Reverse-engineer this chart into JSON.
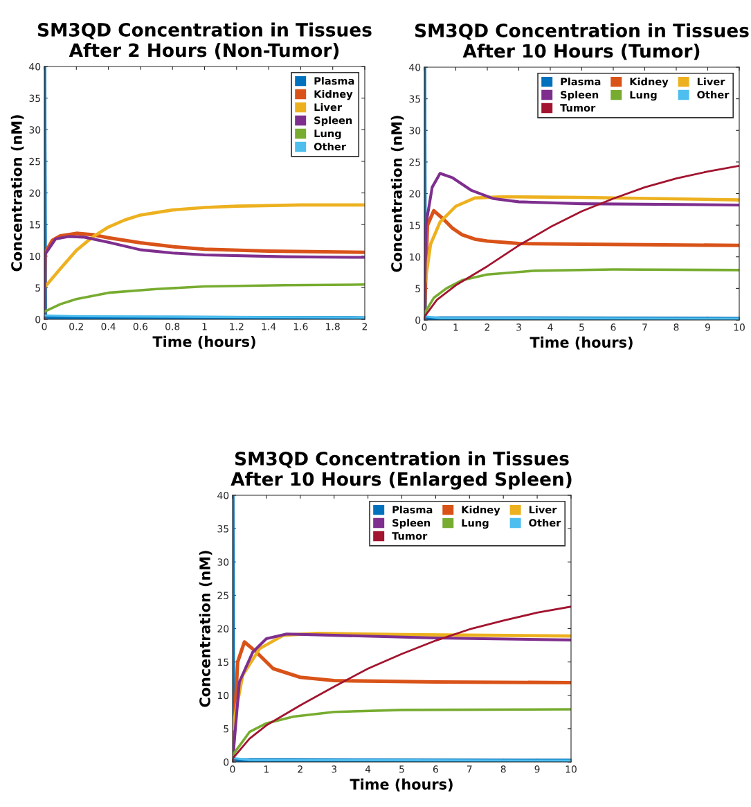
{
  "chart_data": [
    {
      "type": "line",
      "title": "SM3QD Concentration in Tissues\nAfter 2 Hours (Non-Tumor)",
      "xlabel": "Time (hours)",
      "ylabel": "Concentration (nM)",
      "xlim": [
        0,
        2
      ],
      "ylim": [
        0,
        40
      ],
      "xticks": [
        0,
        0.2,
        0.4,
        0.6,
        0.8,
        1,
        1.2,
        1.4,
        1.6,
        1.8,
        2
      ],
      "yticks": [
        0,
        5,
        10,
        15,
        20,
        25,
        30,
        35,
        40
      ],
      "legend": "top right",
      "grid": false,
      "line_style": "solid",
      "marker": "none",
      "series": [
        {
          "name": "Plasma",
          "color": "#0072bd",
          "x": [
            0,
            0.005,
            0.02,
            2
          ],
          "values": [
            40,
            0.5,
            0.3,
            0.2
          ]
        },
        {
          "name": "Kidney",
          "color": "#d95319",
          "x": [
            0,
            0.005,
            0.05,
            0.1,
            0.2,
            0.3,
            0.4,
            0.6,
            0.8,
            1.0,
            1.4,
            2
          ],
          "values": [
            0,
            10.5,
            12.5,
            13.2,
            13.6,
            13.4,
            12.9,
            12.1,
            11.5,
            11.1,
            10.8,
            10.6
          ]
        },
        {
          "name": "Liver",
          "color": "#edb120",
          "x": [
            0,
            0.1,
            0.2,
            0.3,
            0.4,
            0.5,
            0.6,
            0.8,
            1.0,
            1.2,
            1.6,
            2
          ],
          "values": [
            5,
            8,
            10.9,
            13,
            14.6,
            15.7,
            16.5,
            17.3,
            17.7,
            17.9,
            18.1,
            18.1
          ]
        },
        {
          "name": "Spleen",
          "color": "#7e2f8e",
          "x": [
            0,
            0.005,
            0.07,
            0.15,
            0.25,
            0.4,
            0.6,
            0.8,
            1.0,
            1.5,
            2
          ],
          "values": [
            0,
            10.3,
            12.7,
            13.1,
            13.0,
            12.2,
            11.0,
            10.5,
            10.2,
            9.9,
            9.8
          ]
        },
        {
          "name": "Lung",
          "color": "#77ac30",
          "x": [
            0,
            0.1,
            0.2,
            0.4,
            0.7,
            1.0,
            1.5,
            2
          ],
          "values": [
            1.2,
            2.4,
            3.2,
            4.2,
            4.8,
            5.2,
            5.4,
            5.5
          ]
        },
        {
          "name": "Other",
          "color": "#4dbeee",
          "x": [
            0,
            0.2,
            1,
            2
          ],
          "values": [
            0.6,
            0.5,
            0.4,
            0.3
          ]
        }
      ]
    },
    {
      "type": "line",
      "title": "SM3QD Concentration in Tissues\nAfter 10 Hours (Tumor)",
      "xlabel": "Time (hours)",
      "ylabel": "Concentration (nM)",
      "xlim": [
        0,
        10
      ],
      "ylim": [
        0,
        40
      ],
      "xticks": [
        0,
        1,
        2,
        3,
        4,
        5,
        6,
        7,
        8,
        9,
        10
      ],
      "yticks": [
        0,
        5,
        10,
        15,
        20,
        25,
        30,
        35,
        40
      ],
      "legend": "top right",
      "grid": false,
      "line_style": "solid",
      "marker": "none",
      "series": [
        {
          "name": "Plasma",
          "color": "#0072bd",
          "x": [
            0,
            0.02,
            0.1,
            10
          ],
          "values": [
            40,
            0.5,
            0.3,
            0.2
          ]
        },
        {
          "name": "Kidney",
          "color": "#d95319",
          "x": [
            0,
            0.1,
            0.3,
            0.6,
            0.9,
            1.2,
            1.6,
            2,
            3,
            5,
            10
          ],
          "values": [
            0,
            15,
            17.3,
            16,
            14.5,
            13.5,
            12.8,
            12.5,
            12.1,
            12,
            11.8
          ]
        },
        {
          "name": "Liver",
          "color": "#edb120",
          "x": [
            0,
            0.2,
            0.5,
            1,
            1.6,
            2.5,
            5,
            10
          ],
          "values": [
            5,
            12,
            15.5,
            18,
            19.3,
            19.5,
            19.4,
            19
          ]
        },
        {
          "name": "Spleen",
          "color": "#7e2f8e",
          "x": [
            0,
            0.05,
            0.25,
            0.5,
            0.9,
            1.5,
            2.2,
            3,
            5,
            10
          ],
          "values": [
            0,
            15,
            21,
            23.2,
            22.5,
            20.5,
            19.2,
            18.7,
            18.4,
            18.2
          ]
        },
        {
          "name": "Lung",
          "color": "#77ac30",
          "x": [
            0,
            0.3,
            0.7,
            1.2,
            2,
            3.5,
            6,
            10
          ],
          "values": [
            1,
            3.5,
            5,
            6.3,
            7.2,
            7.8,
            8,
            7.9
          ]
        },
        {
          "name": "Other",
          "color": "#4dbeee",
          "x": [
            0,
            0.5,
            10
          ],
          "values": [
            0.6,
            0.3,
            0.2
          ]
        },
        {
          "name": "Tumor",
          "color": "#a2142f",
          "x": [
            0,
            0.4,
            1,
            2,
            3,
            4,
            5,
            6,
            7,
            8,
            9,
            10
          ],
          "values": [
            0.5,
            3.2,
            5.5,
            8.5,
            11.8,
            14.7,
            17.2,
            19.2,
            21,
            22.4,
            23.5,
            24.4
          ]
        }
      ]
    },
    {
      "type": "line",
      "title": "SM3QD Concentration in Tissues\nAfter 10 Hours (Enlarged Spleen)",
      "xlabel": "Time (hours)",
      "ylabel": "Concentration (nM)",
      "xlim": [
        0,
        10
      ],
      "ylim": [
        0,
        40
      ],
      "xticks": [
        0,
        1,
        2,
        3,
        4,
        5,
        6,
        7,
        8,
        9,
        10
      ],
      "yticks": [
        0,
        5,
        10,
        15,
        20,
        25,
        30,
        35,
        40
      ],
      "legend": "top right",
      "grid": false,
      "line_style": "solid",
      "marker": "none",
      "series": [
        {
          "name": "Plasma",
          "color": "#0072bd",
          "x": [
            0,
            0.02,
            0.1,
            10
          ],
          "values": [
            40,
            0.5,
            0.3,
            0.2
          ]
        },
        {
          "name": "Kidney",
          "color": "#d95319",
          "x": [
            0,
            0.15,
            0.35,
            0.7,
            1.2,
            2,
            3,
            6,
            10
          ],
          "values": [
            0,
            15,
            18,
            16.5,
            14,
            12.7,
            12.2,
            12,
            11.9
          ]
        },
        {
          "name": "Liver",
          "color": "#edb120",
          "x": [
            0,
            0.3,
            0.8,
            1.5,
            2.5,
            5,
            10
          ],
          "values": [
            5,
            13,
            17,
            19,
            19.3,
            19.1,
            18.9
          ]
        },
        {
          "name": "Spleen",
          "color": "#7e2f8e",
          "x": [
            0,
            0.2,
            0.6,
            1,
            1.6,
            3,
            6,
            10
          ],
          "values": [
            0,
            12,
            16.5,
            18.5,
            19.2,
            19,
            18.6,
            18.3
          ]
        },
        {
          "name": "Lung",
          "color": "#77ac30",
          "x": [
            0,
            0.5,
            1,
            1.8,
            3,
            5,
            10
          ],
          "values": [
            1,
            4.5,
            5.8,
            6.8,
            7.5,
            7.8,
            7.9
          ]
        },
        {
          "name": "Other",
          "color": "#4dbeee",
          "x": [
            0,
            0.5,
            10
          ],
          "values": [
            0.6,
            0.3,
            0.2
          ]
        },
        {
          "name": "Tumor",
          "color": "#a2142f",
          "x": [
            0,
            0.5,
            1,
            2,
            3,
            4,
            5,
            6,
            7,
            8,
            9,
            10
          ],
          "values": [
            0.5,
            3.5,
            5.5,
            8.5,
            11.3,
            14,
            16.2,
            18.2,
            19.9,
            21.2,
            22.4,
            23.3
          ]
        }
      ]
    }
  ]
}
